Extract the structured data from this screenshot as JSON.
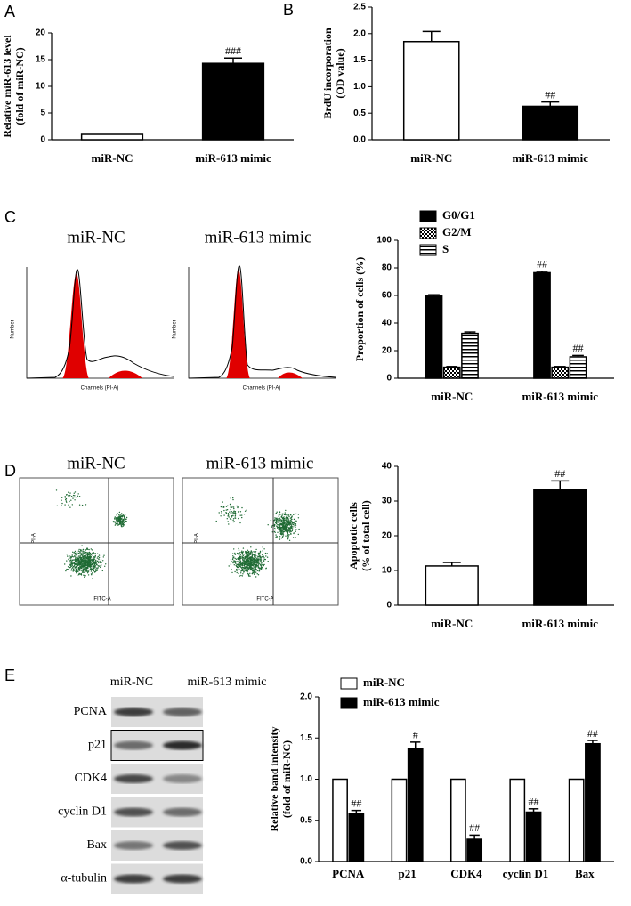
{
  "panel_labels": [
    "A",
    "B",
    "C",
    "D",
    "E"
  ],
  "cell_cycle_histograms": {
    "titles": [
      "miR-NC",
      "miR-613 mimic"
    ],
    "y_axis_label": "Number",
    "x_axis_label": "Channels (PI-A)"
  },
  "apoptosis_dot_plots": {
    "titles": [
      "miR-NC",
      "miR-613 mimic"
    ],
    "y_axis_label": "PI-A",
    "x_axis_label": "FITC-A"
  },
  "western_blot": {
    "lanes": [
      "miR-NC",
      "miR-613 mimic"
    ],
    "proteins": [
      "PCNA",
      "p21",
      "CDK4",
      "cyclin D1",
      "Bax",
      "α-tubulin"
    ]
  },
  "chart_data": [
    {
      "type": "bar",
      "ylabel": [
        "Relative miR-613 level",
        "(fold of miR-NC)"
      ],
      "categories": [
        "miR-NC",
        "miR-613 mimic"
      ],
      "values": [
        1,
        14.3
      ],
      "errors": [
        null,
        1.0
      ],
      "colors": [
        "#ffffff",
        "#000000"
      ],
      "significance": [
        null,
        "###"
      ],
      "ylim": [
        0,
        20
      ],
      "yticks": [
        0,
        5,
        10,
        15,
        20
      ]
    },
    {
      "type": "bar",
      "ylabel": [
        "BrdU incorporation",
        "(OD value)"
      ],
      "categories": [
        "miR-NC",
        "miR-613 mimic"
      ],
      "values": [
        1.85,
        0.63
      ],
      "errors": [
        0.19,
        0.08
      ],
      "colors": [
        "#ffffff",
        "#000000"
      ],
      "significance": [
        null,
        "##"
      ],
      "ylim": [
        0,
        2.5
      ],
      "yticks": [
        {
          "value": 0,
          "label": "0.0"
        },
        0.5,
        {
          "value": 1,
          "label": "1.0"
        },
        1.5,
        {
          "value": 2,
          "label": "2.0"
        },
        2.5
      ]
    },
    {
      "type": "bar",
      "ylabel": [
        "Proportion of cells (%)"
      ],
      "legend": "top",
      "categories": [
        "miR-NC",
        "miR-613 mimic"
      ],
      "series": [
        {
          "name": "G0/G1",
          "color": "#000000",
          "pattern": "solid",
          "values": [
            59.5,
            76.5
          ],
          "errors": [
            1,
            1
          ],
          "significance": [
            null,
            "##"
          ]
        },
        {
          "name": "G2/M",
          "color": "#000000",
          "pattern": "checker",
          "values": [
            8,
            8
          ],
          "errors": [
            0.5,
            0.5
          ],
          "significance": [
            null,
            null
          ]
        },
        {
          "name": "S",
          "color": "#000000",
          "pattern": "hlines",
          "values": [
            32.5,
            15.5
          ],
          "errors": [
            1,
            1
          ],
          "significance": [
            null,
            "##"
          ]
        }
      ],
      "ylim": [
        0,
        100
      ],
      "yticks": [
        0,
        20,
        40,
        60,
        80,
        100
      ]
    },
    {
      "type": "bar",
      "ylabel": [
        "Apoptotic cells",
        "(% of total cell)"
      ],
      "categories": [
        "miR-NC",
        "miR-613 mimic"
      ],
      "values": [
        11.3,
        33.3
      ],
      "errors": [
        1,
        2.5
      ],
      "colors": [
        "#ffffff",
        "#000000"
      ],
      "significance": [
        null,
        "##"
      ],
      "ylim": [
        0,
        40
      ],
      "yticks": [
        0,
        10,
        20,
        30,
        40
      ]
    },
    {
      "type": "bar",
      "ylabel": [
        "Relative band intensity",
        "(fold of miR-NC)"
      ],
      "legend": "top-left",
      "categories": [
        "PCNA",
        "p21",
        "CDK4",
        "cyclin D1",
        "Bax"
      ],
      "series": [
        {
          "name": "miR-NC",
          "color": "#ffffff",
          "pattern": "solid",
          "values": [
            1,
            1,
            1,
            1,
            1
          ],
          "errors": [
            null,
            null,
            null,
            null,
            null
          ],
          "significance": [
            null,
            null,
            null,
            null,
            null
          ]
        },
        {
          "name": "miR-613 mimic",
          "color": "#000000",
          "pattern": "solid",
          "values": [
            0.58,
            1.37,
            0.27,
            0.6,
            1.43
          ],
          "errors": [
            0.04,
            0.08,
            0.05,
            0.04,
            0.04
          ],
          "significance": [
            "##",
            "#",
            "##",
            "##",
            "##"
          ]
        }
      ],
      "ylim": [
        0,
        2
      ],
      "yticks": [
        {
          "value": 0,
          "label": "0.0"
        },
        0.5,
        {
          "value": 1,
          "label": "1.0"
        },
        1.5,
        {
          "value": 2,
          "label": "2.0"
        }
      ]
    }
  ]
}
